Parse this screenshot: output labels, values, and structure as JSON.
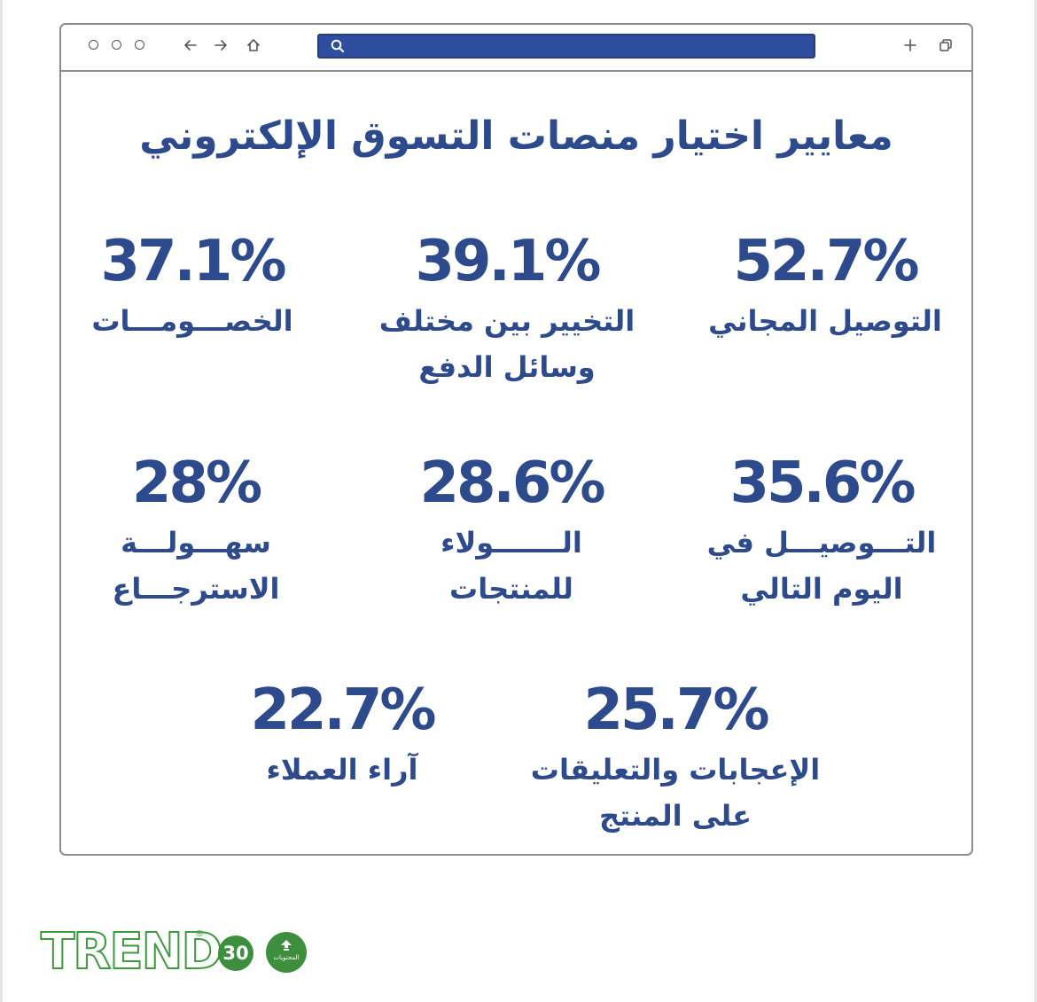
{
  "toolbar": {
    "search_value": ""
  },
  "title": "معايير اختيار منصات التسوق الإلكتروني",
  "stats": [
    {
      "value": "52.7%",
      "label_lines": [
        "التوصيل المجاني"
      ]
    },
    {
      "value": "39.1%",
      "label_lines": [
        "التخيير بين مختلف",
        "وسائل الدفع"
      ]
    },
    {
      "value": "37.1%",
      "label_lines": [
        "الخصـــومـــات"
      ]
    },
    {
      "value": "35.6%",
      "label_lines": [
        "التـــوصيـــل في",
        "اليوم التالي"
      ]
    },
    {
      "value": "28.6%",
      "label_lines": [
        "الـــــــولاء",
        "للمنتجات"
      ]
    },
    {
      "value": "28%",
      "label_lines": [
        "سهـــولـــة",
        "الاسترجـــاع"
      ]
    },
    {
      "value": "25.7%",
      "label_lines": [
        "الإعجابات والتعليقات",
        "على المنتج"
      ]
    },
    {
      "value": "22.7%",
      "label_lines": [
        "آراء العملاء"
      ]
    }
  ],
  "footer": {
    "logo_text": "TREND",
    "registered_mark": "®",
    "badge_number": "30",
    "content_badge_text": "المحتويات"
  },
  "colors": {
    "primary": "#2d4a8d",
    "search_bar": "#2f4d9e",
    "frame": "#8d8d8d",
    "brand_green": "#3d9a3d"
  },
  "icons": [
    "circle-icon",
    "arrow-left-icon",
    "arrow-right-icon",
    "home-icon",
    "search-icon",
    "plus-icon",
    "copy-icon"
  ]
}
